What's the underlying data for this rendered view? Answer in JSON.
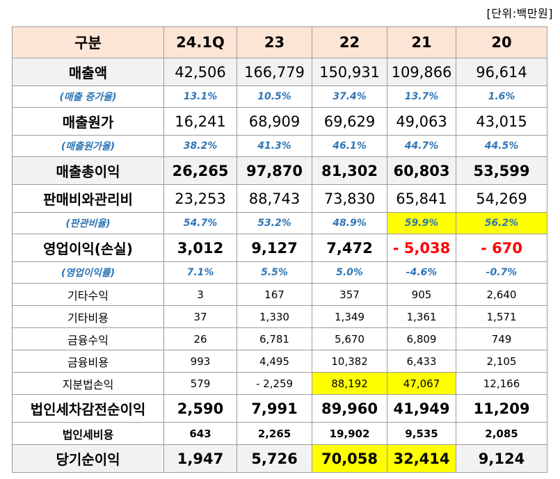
{
  "unit_note": "[단위:백만원]",
  "header": [
    "구분",
    "24.1Q",
    "23",
    "22",
    "21",
    "20"
  ],
  "rows": [
    {
      "label": "매출액",
      "values": [
        "42,506",
        "166,779",
        "150,931",
        "109,866",
        "96,614"
      ]
    },
    {
      "label": "(매출 증가율)",
      "values": [
        "13.1%",
        "10.5%",
        "37.4%",
        "13.7%",
        "1.6%"
      ]
    },
    {
      "label": "매출원가",
      "values": [
        "16,241",
        "68,909",
        "69,629",
        "49,063",
        "43,015"
      ]
    },
    {
      "label": "(매출원가율)",
      "values": [
        "38.2%",
        "41.3%",
        "46.1%",
        "44.7%",
        "44.5%"
      ]
    },
    {
      "label": "매출총이익",
      "values": [
        "26,265",
        "97,870",
        "81,302",
        "60,803",
        "53,599"
      ]
    },
    {
      "label": "판매비와관리비",
      "values": [
        "23,253",
        "88,743",
        "73,830",
        "65,841",
        "54,269"
      ]
    },
    {
      "label": "(판관비율)",
      "values": [
        "54.7%",
        "53.2%",
        "48.9%",
        "59.9%",
        "56.2%"
      ]
    },
    {
      "label": "영업이익(손실)",
      "values": [
        "3,012",
        "9,127",
        "7,472",
        "- 5,038",
        "- 670"
      ]
    },
    {
      "label": "(영업이익률)",
      "values": [
        "7.1%",
        "5.5%",
        "5.0%",
        "-4.6%",
        "-0.7%"
      ]
    },
    {
      "label": "기타수익",
      "values": [
        "3",
        "167",
        "357",
        "905",
        "2,640"
      ]
    },
    {
      "label": "기타비용",
      "values": [
        "37",
        "1,330",
        "1,349",
        "1,361",
        "1,571"
      ]
    },
    {
      "label": "금융수익",
      "values": [
        "26",
        "6,781",
        "5,670",
        "6,809",
        "749"
      ]
    },
    {
      "label": "금융비용",
      "values": [
        "993",
        "4,495",
        "10,382",
        "6,433",
        "2,105"
      ]
    },
    {
      "label": "지분법손익",
      "values": [
        "579",
        "- 2,259",
        "88,192",
        "47,067",
        "12,166"
      ]
    },
    {
      "label": "법인세차감전순이익",
      "values": [
        "2,590",
        "7,991",
        "89,960",
        "41,949",
        "11,209"
      ]
    },
    {
      "label": "법인세비용",
      "values": [
        "643",
        "2,265",
        "19,902",
        "9,535",
        "2,085"
      ]
    },
    {
      "label": "당기순이익",
      "values": [
        "1,947",
        "5,726",
        "70,058",
        "32,414",
        "9,124"
      ]
    }
  ],
  "colors": {
    "header_bg": "#fde5d6",
    "highlight": "#ffff00",
    "percent_text": "#2e75b6",
    "negative": "#ff0000",
    "shade": "#f2f2f2"
  }
}
